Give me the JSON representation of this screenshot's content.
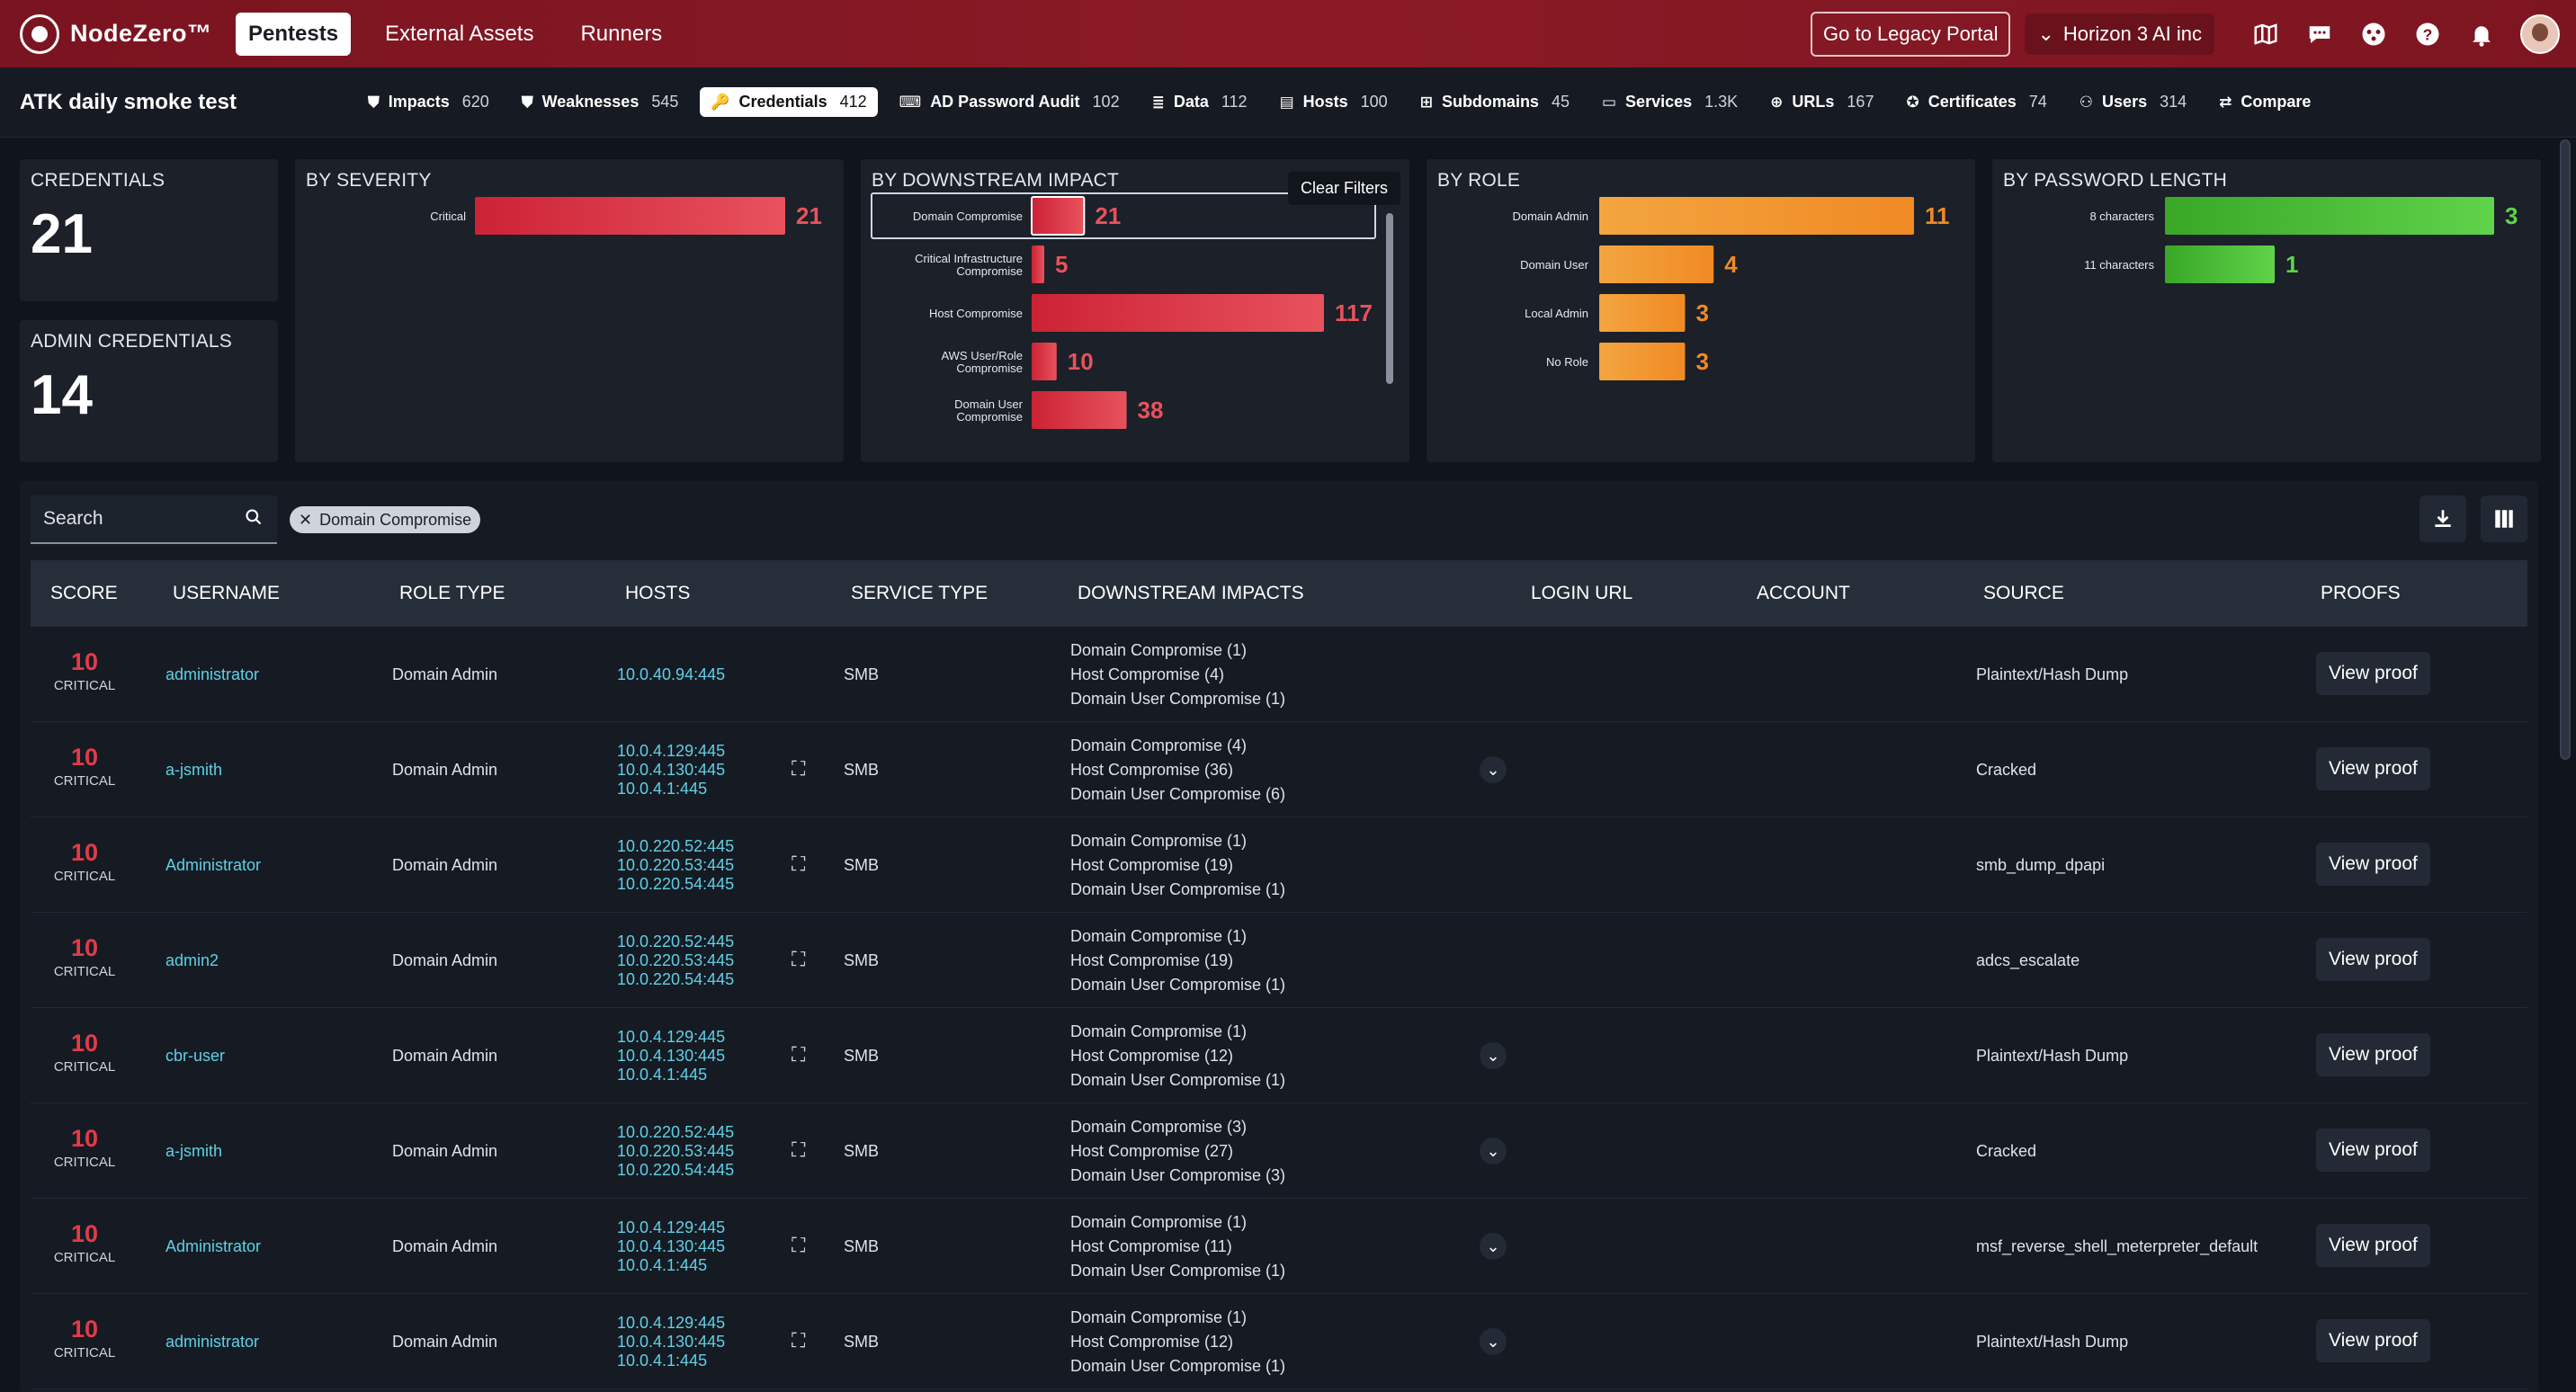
{
  "nav": {
    "brand": "NodeZero™",
    "tabs": [
      {
        "label": "Pentests",
        "active": true
      },
      {
        "label": "External Assets"
      },
      {
        "label": "Runners"
      }
    ],
    "legacy_button": "Go to Legacy Portal",
    "org": "Horizon 3 AI inc",
    "icons": [
      "map-icon",
      "chat-icon",
      "community-icon",
      "help-icon",
      "bell-icon"
    ]
  },
  "subbar": {
    "title": "ATK daily smoke test",
    "pills": [
      {
        "label": "Impacts",
        "count": "620",
        "icon": "shield-icon"
      },
      {
        "label": "Weaknesses",
        "count": "545",
        "icon": "shield-icon"
      },
      {
        "label": "Credentials",
        "count": "412",
        "icon": "key-icon",
        "active": true
      },
      {
        "label": "AD Password Audit",
        "count": "102",
        "icon": "password-audit-icon"
      },
      {
        "label": "Data",
        "count": "112",
        "icon": "database-icon"
      },
      {
        "label": "Hosts",
        "count": "100",
        "icon": "server-icon"
      },
      {
        "label": "Subdomains",
        "count": "45",
        "icon": "subdomain-icon"
      },
      {
        "label": "Services",
        "count": "1.3K",
        "icon": "monitor-icon"
      },
      {
        "label": "URLs",
        "count": "167",
        "icon": "globe-icon"
      },
      {
        "label": "Certificates",
        "count": "74",
        "icon": "certificate-icon"
      },
      {
        "label": "Users",
        "count": "314",
        "icon": "users-icon"
      },
      {
        "label": "Compare",
        "count": "",
        "icon": "compare-icon"
      }
    ]
  },
  "summary": {
    "credentials": {
      "title": "CREDENTIALS",
      "value": "21"
    },
    "admin": {
      "title": "ADMIN CREDENTIALS",
      "value": "14"
    }
  },
  "chart_data": [
    {
      "type": "bar",
      "title": "BY SEVERITY",
      "orientation": "horizontal",
      "categories": [
        "Critical"
      ],
      "values": [
        21
      ],
      "color": "#d8303f"
    },
    {
      "type": "bar",
      "title": "BY DOWNSTREAM IMPACT",
      "orientation": "horizontal",
      "categories": [
        "Domain Compromise",
        "Critical Infrastructure Compromise",
        "Host Compromise",
        "AWS User/Role Compromise",
        "Domain User Compromise"
      ],
      "values": [
        21,
        5,
        117,
        10,
        38
      ],
      "color": "#d8303f",
      "selected": "Domain Compromise"
    },
    {
      "type": "bar",
      "title": "BY ROLE",
      "orientation": "horizontal",
      "categories": [
        "Domain Admin",
        "Domain User",
        "Local Admin",
        "No Role"
      ],
      "values": [
        11,
        4,
        3,
        3
      ],
      "color": "#f39a2e"
    },
    {
      "type": "bar",
      "title": "BY PASSWORD LENGTH",
      "orientation": "horizontal",
      "categories": [
        "8 characters",
        "11 characters"
      ],
      "values": [
        3,
        1
      ],
      "color": "#4cc531"
    }
  ],
  "filters": {
    "clear_label": "Clear Filters",
    "search_placeholder": "Search",
    "active_chip": "Domain Compromise"
  },
  "table": {
    "columns": [
      "SCORE",
      "USERNAME",
      "ROLE TYPE",
      "HOSTS",
      "SERVICE TYPE",
      "DOWNSTREAM IMPACTS",
      "LOGIN URL",
      "ACCOUNT",
      "SOURCE",
      "PROOFS"
    ],
    "proof_label": "View proof",
    "rows": [
      {
        "score": "10",
        "severity": "CRITICAL",
        "username": "administrator",
        "role": "Domain Admin",
        "hosts": [
          "10.0.40.94:445"
        ],
        "service": "SMB",
        "impacts": [
          "Domain Compromise (1)",
          "Host Compromise (4)",
          "Domain User Compromise (1)"
        ],
        "source": "Plaintext/Hash Dump",
        "multi": false
      },
      {
        "score": "10",
        "severity": "CRITICAL",
        "username": "a-jsmith",
        "role": "Domain Admin",
        "hosts": [
          "10.0.4.129:445",
          "10.0.4.130:445",
          "10.0.4.1:445"
        ],
        "service": "SMB",
        "impacts": [
          "Domain Compromise (4)",
          "Host Compromise (36)",
          "Domain User Compromise (6)"
        ],
        "source": "Cracked",
        "multi": true,
        "chev": true
      },
      {
        "score": "10",
        "severity": "CRITICAL",
        "username": "Administrator",
        "role": "Domain Admin",
        "hosts": [
          "10.0.220.52:445",
          "10.0.220.53:445",
          "10.0.220.54:445"
        ],
        "service": "SMB",
        "impacts": [
          "Domain Compromise (1)",
          "Host Compromise (19)",
          "Domain User Compromise (1)"
        ],
        "source": "smb_dump_dpapi",
        "multi": true,
        "chev": false
      },
      {
        "score": "10",
        "severity": "CRITICAL",
        "username": "admin2",
        "role": "Domain Admin",
        "hosts": [
          "10.0.220.52:445",
          "10.0.220.53:445",
          "10.0.220.54:445"
        ],
        "service": "SMB",
        "impacts": [
          "Domain Compromise (1)",
          "Host Compromise (19)",
          "Domain User Compromise (1)"
        ],
        "source": "adcs_escalate",
        "multi": true,
        "chev": false
      },
      {
        "score": "10",
        "severity": "CRITICAL",
        "username": "cbr-user",
        "role": "Domain Admin",
        "hosts": [
          "10.0.4.129:445",
          "10.0.4.130:445",
          "10.0.4.1:445"
        ],
        "service": "SMB",
        "impacts": [
          "Domain Compromise (1)",
          "Host Compromise (12)",
          "Domain User Compromise (1)"
        ],
        "source": "Plaintext/Hash Dump",
        "multi": true,
        "chev": true
      },
      {
        "score": "10",
        "severity": "CRITICAL",
        "username": "a-jsmith",
        "role": "Domain Admin",
        "hosts": [
          "10.0.220.52:445",
          "10.0.220.53:445",
          "10.0.220.54:445"
        ],
        "service": "SMB",
        "impacts": [
          "Domain Compromise (3)",
          "Host Compromise (27)",
          "Domain User Compromise (3)"
        ],
        "source": "Cracked",
        "multi": true,
        "chev": true
      },
      {
        "score": "10",
        "severity": "CRITICAL",
        "username": "Administrator",
        "role": "Domain Admin",
        "hosts": [
          "10.0.4.129:445",
          "10.0.4.130:445",
          "10.0.4.1:445"
        ],
        "service": "SMB",
        "impacts": [
          "Domain Compromise (1)",
          "Host Compromise (11)",
          "Domain User Compromise (1)"
        ],
        "source": "msf_reverse_shell_meterpreter_default",
        "multi": true,
        "chev": true
      },
      {
        "score": "10",
        "severity": "CRITICAL",
        "username": "administrator",
        "role": "Domain Admin",
        "hosts": [
          "10.0.4.129:445",
          "10.0.4.130:445",
          "10.0.4.1:445"
        ],
        "service": "SMB",
        "impacts": [
          "Domain Compromise (1)",
          "Host Compromise (12)",
          "Domain User Compromise (1)"
        ],
        "source": "Plaintext/Hash Dump",
        "multi": true,
        "chev": true
      }
    ]
  }
}
